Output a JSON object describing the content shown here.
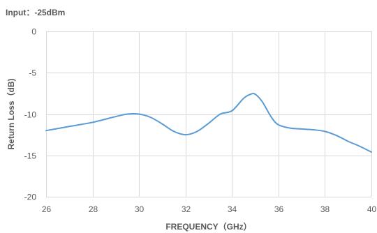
{
  "chart_data": {
    "type": "line",
    "title": "Input：-25dBm",
    "xlabel": "FREQUENCY（GHz）",
    "ylabel": "Return Loss（dB)",
    "xlim": [
      26,
      40
    ],
    "ylim": [
      -20,
      0
    ],
    "x_ticks": [
      26,
      28,
      30,
      32,
      34,
      36,
      38,
      40
    ],
    "y_ticks": [
      0,
      -5,
      -10,
      -15,
      -20
    ],
    "grid": true,
    "line_color": "#5b9bd5",
    "series": [
      {
        "x": [
          26,
          27,
          28,
          29,
          29.5,
          30,
          30.5,
          31,
          31.5,
          32,
          32.5,
          33,
          33.5,
          34,
          34.5,
          34.8,
          35,
          35.3,
          35.7,
          36,
          36.5,
          37,
          37.5,
          38,
          38.5,
          39,
          39.5,
          40
        ],
        "values": [
          -12.0,
          -11.5,
          -11.0,
          -10.3,
          -10.0,
          -10.0,
          -10.4,
          -11.2,
          -12.1,
          -12.5,
          -12.1,
          -11.1,
          -10.0,
          -9.6,
          -8.1,
          -7.6,
          -7.6,
          -8.5,
          -10.4,
          -11.3,
          -11.7,
          -11.8,
          -11.9,
          -12.1,
          -12.6,
          -13.3,
          -13.9,
          -14.6
        ]
      }
    ]
  }
}
